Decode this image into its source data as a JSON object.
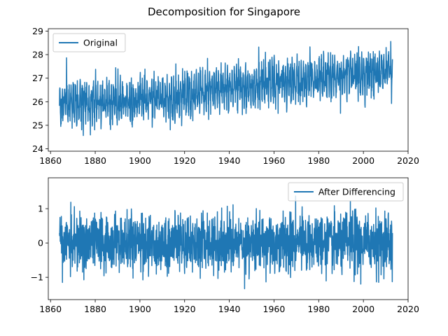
{
  "figure": {
    "title": "Decomposition for Singapore"
  },
  "chart_data": [
    {
      "type": "line",
      "title": "",
      "xlabel": "",
      "ylabel": "",
      "xlim": [
        1859,
        2020
      ],
      "ylim": [
        23.9,
        29.1
      ],
      "xticks": [
        1860,
        1880,
        1900,
        1920,
        1940,
        1960,
        1980,
        2000,
        2020
      ],
      "yticks": [
        24,
        25,
        26,
        27,
        28,
        29
      ],
      "legend": "upper-left",
      "color": "#1f77b4",
      "series": [
        {
          "name": "Original",
          "x_start": 1864,
          "x_end": 2013,
          "trend": [
            [
              1864,
              25.9
            ],
            [
              1890,
              26.0
            ],
            [
              1920,
              26.25
            ],
            [
              1940,
              26.6
            ],
            [
              1960,
              26.8
            ],
            [
              1980,
              26.95
            ],
            [
              2000,
              27.2
            ],
            [
              2013,
              27.35
            ]
          ],
          "seasonal_amplitude": 0.55,
          "noise_sd": 0.35,
          "min": 24.1,
          "max": 28.9
        }
      ]
    },
    {
      "type": "line",
      "title": "",
      "xlabel": "",
      "ylabel": "",
      "xlim": [
        1859,
        2020
      ],
      "ylim": [
        -1.65,
        1.9
      ],
      "xticks": [
        1860,
        1880,
        1900,
        1920,
        1940,
        1960,
        1980,
        2000,
        2020
      ],
      "yticks": [
        -1,
        0,
        1
      ],
      "legend": "upper-right",
      "color": "#1f77b4",
      "series": [
        {
          "name": "After Differencing",
          "x_start": 1864,
          "x_end": 2013,
          "mean": 0,
          "spread_sd": 0.38,
          "min": -1.5,
          "max": 1.75
        }
      ]
    }
  ]
}
